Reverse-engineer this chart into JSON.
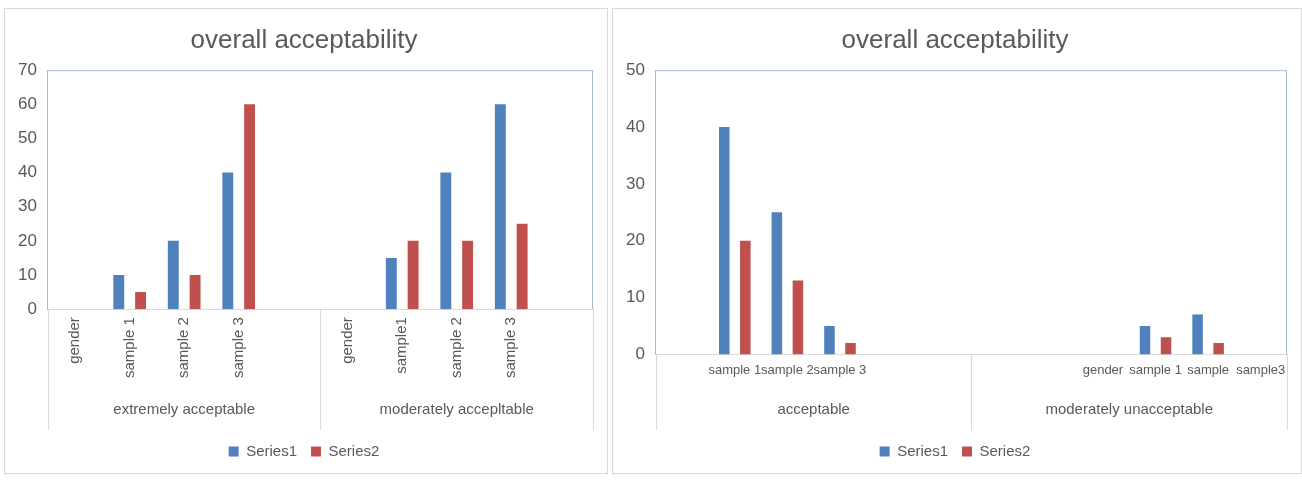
{
  "chart_data": [
    {
      "type": "bar",
      "title": "overall acceptability",
      "categories": [
        "gender",
        "sample 1",
        "sample 2",
        "sample 3",
        null,
        "gender",
        "sample1",
        "sample 2",
        "sample 3",
        null
      ],
      "annotations": [
        "extremely acceptable",
        "moderately accepltable"
      ],
      "series": [
        {
          "name": "Series1",
          "color": "#4f81bd",
          "values": [
            null,
            10,
            20,
            40,
            null,
            null,
            15,
            40,
            60,
            null
          ]
        },
        {
          "name": "Series2",
          "color": "#c0504d",
          "values": [
            null,
            5,
            10,
            60,
            null,
            null,
            20,
            20,
            25,
            null
          ]
        }
      ],
      "ylim": [
        0,
        70
      ],
      "yticks": [
        0,
        10,
        20,
        30,
        40,
        50,
        60,
        70
      ],
      "grid": false,
      "legend": "bottom"
    },
    {
      "type": "bar",
      "title": "overall acceptability",
      "categories": [
        null,
        "sample 1",
        "sample 2",
        "sample 3",
        null,
        null,
        null,
        null,
        "gender",
        "sample 1",
        "sample",
        "sample3"
      ],
      "annotations": [
        "acceptable",
        "moderately unacceptable"
      ],
      "series": [
        {
          "name": "Series1",
          "color": "#4f81bd",
          "values": [
            null,
            40,
            25,
            5,
            null,
            null,
            null,
            null,
            null,
            5,
            7,
            null
          ]
        },
        {
          "name": "Series2",
          "color": "#c0504d",
          "values": [
            null,
            20,
            13,
            2,
            null,
            null,
            null,
            null,
            null,
            3,
            2,
            null
          ]
        }
      ],
      "ylim": [
        0,
        50
      ],
      "yticks": [
        0,
        10,
        20,
        30,
        40,
        50
      ],
      "grid": false,
      "legend": "bottom"
    }
  ]
}
